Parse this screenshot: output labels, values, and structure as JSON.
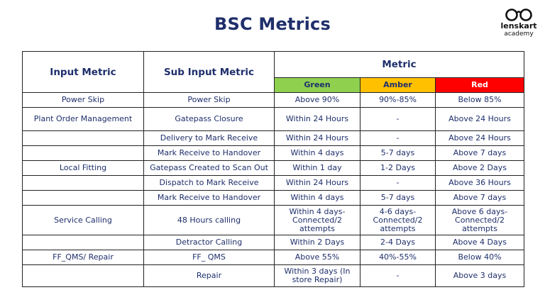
{
  "title": "BSC Metrics",
  "logo": {
    "brand": "lenskart",
    "sub": "academy"
  },
  "table": {
    "headers": {
      "input_metric": "Input Metric",
      "sub_input_metric": "Sub Input Metric",
      "metric": "Metric",
      "green": "Green",
      "amber": "Amber",
      "red": "Red"
    },
    "colors": {
      "green": "#8fd14f",
      "amber": "#ffc000",
      "red": "#ff0000",
      "text": "#1f2f6b"
    },
    "rows": [
      {
        "input": "Power Skip",
        "sub": "Power Skip",
        "green": "Above 90%",
        "amber": "90%-85%",
        "red": "Below 85%"
      },
      {
        "input": "Plant Order Management",
        "sub": "Gatepass Closure",
        "green": "Within 24 Hours",
        "amber": "-",
        "red": "Above 24 Hours"
      },
      {
        "input": "",
        "sub": "Delivery to Mark Receive",
        "green": "Within 24 Hours",
        "amber": "-",
        "red": "Above 24 Hours"
      },
      {
        "input": "",
        "sub": "Mark Receive to Handover",
        "green": "Within 4 days",
        "amber": "5-7 days",
        "red": "Above 7 days"
      },
      {
        "input": "Local Fitting",
        "sub": "Gatepass Created to Scan Out",
        "green": "Within 1 day",
        "amber": "1-2 Days",
        "red": "Above 2 Days"
      },
      {
        "input": "",
        "sub": "Dispatch to Mark Receive",
        "green": "Within 24 Hours",
        "amber": "-",
        "red": "Above 36 Hours"
      },
      {
        "input": "",
        "sub": "Mark Receive to Handover",
        "green": "Within 4 days",
        "amber": "5-7 days",
        "red": "Above 7 days"
      },
      {
        "input": "Service Calling",
        "sub": "48 Hours calling",
        "green": "Within 4 days- Connected/2 attempts",
        "amber": "4-6 days- Connected/2 attempts",
        "red": "Above 6 days- Connected/2 attempts"
      },
      {
        "input": "",
        "sub": "Detractor Calling",
        "green": "Within 2 Days",
        "amber": "2-4 Days",
        "red": "Above 4 Days"
      },
      {
        "input": "FF_QMS/ Repair",
        "sub": "FF_ QMS",
        "green": "Above 55%",
        "amber": "40%-55%",
        "red": "Below 40%"
      },
      {
        "input": "",
        "sub": "Repair",
        "green": "Within 3 days (In store Repair)",
        "amber": "-",
        "red": "Above 3 days"
      }
    ]
  }
}
